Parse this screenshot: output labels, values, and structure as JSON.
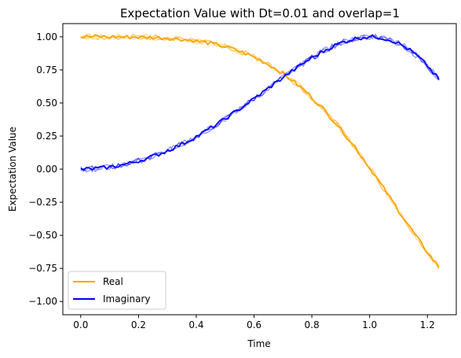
{
  "chart_data": {
    "type": "line",
    "title": "Expectation Value with Dt=0.01 and overlap=1",
    "xlabel": "Time",
    "ylabel": "Expectation Value",
    "xlim": [
      -0.062,
      1.3
    ],
    "ylim": [
      -1.1,
      1.1
    ],
    "x_ticks": [
      0.0,
      0.2,
      0.4,
      0.6,
      0.8,
      1.0,
      1.2
    ],
    "x_tick_labels": [
      "0.0",
      "0.2",
      "0.4",
      "0.6",
      "0.8",
      "1.0",
      "1.2"
    ],
    "y_ticks": [
      1.0,
      0.75,
      0.5,
      0.25,
      0.0,
      -0.25,
      -0.5,
      -0.75,
      -1.0
    ],
    "y_tick_labels": [
      "1.00",
      "0.75",
      "0.50",
      "0.25",
      "0.00",
      "−0.25",
      "−0.50",
      "−0.75",
      "−1.00"
    ],
    "grid": false,
    "legend_position": "lower-left",
    "x_start": 0.0,
    "x_end": 1.24,
    "x_step": 0.01,
    "series": [
      {
        "name": "Real",
        "color": "#ffa500",
        "function": "cos(1.56*t*t)",
        "description_of_noise": "small jitter, ~0.02"
      },
      {
        "name": "Imaginary",
        "color": "#0000ff",
        "function": "sin(1.56*t*t)",
        "description_of_noise": "small jitter, ~0.02"
      }
    ]
  }
}
